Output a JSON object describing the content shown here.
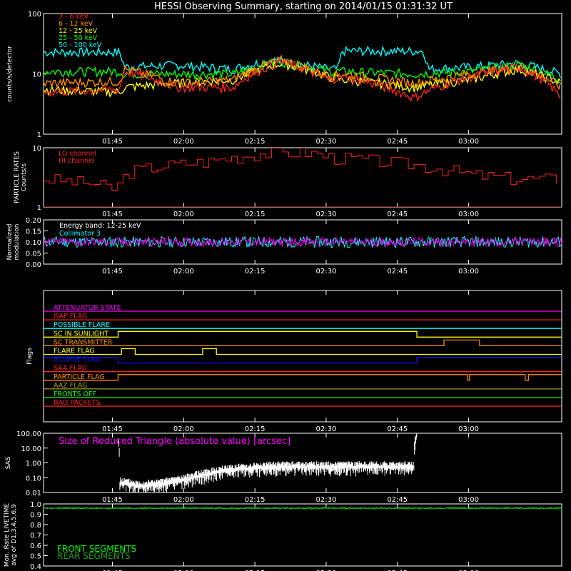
{
  "title": "HESSI Observing Summary, starting on 2014/01/15 01:31:32 UT",
  "time_ticks": [
    "01:45",
    "02:00",
    "02:15",
    "02:30",
    "02:45",
    "03:00"
  ],
  "colors": {
    "red": "#ff2020",
    "orange": "#ff8c00",
    "yellow": "#ffff00",
    "green": "#00ff00",
    "cyan": "#00ffff",
    "magenta": "#ff00ff",
    "blue": "#1010ff",
    "olive": "#a0a020",
    "dkgreen": "#20a020"
  },
  "chart_data": [
    {
      "id": "count-rates",
      "type": "line",
      "ylabel": "counts/s/detector",
      "y_log": true,
      "ylim": [
        1,
        100
      ],
      "yticks": [
        "1",
        "10",
        "100"
      ],
      "legend_position": "top-left",
      "series": [
        {
          "name": "3 - 6 keV",
          "color": "#ff2020",
          "t": [
            0,
            16,
            17,
            28,
            40,
            50,
            60,
            63,
            78,
            90,
            100,
            109
          ],
          "values": [
            5,
            5.5,
            11,
            6,
            6,
            16,
            8,
            9,
            4,
            9,
            13,
            4
          ]
        },
        {
          "name": "6 - 12 keV",
          "color": "#ff8c00",
          "t": [
            0,
            16,
            17,
            28,
            40,
            50,
            60,
            63,
            78,
            90,
            100,
            109
          ],
          "values": [
            7,
            7.5,
            12,
            7,
            8,
            17,
            9,
            10,
            7,
            10,
            13,
            6
          ]
        },
        {
          "name": "12 - 25 keV",
          "color": "#ffff00",
          "t": [
            0,
            16,
            17,
            28,
            40,
            50,
            60,
            63,
            78,
            90,
            100,
            109
          ],
          "values": [
            5.5,
            5,
            6,
            7,
            8,
            15,
            9,
            8,
            6,
            8,
            12,
            7
          ]
        },
        {
          "name": "25 - 50 keV",
          "color": "#00ff00",
          "t": [
            0,
            16,
            17,
            28,
            40,
            50,
            60,
            63,
            78,
            90,
            100,
            109
          ],
          "values": [
            11,
            11,
            10,
            10,
            10,
            16,
            11,
            11,
            10,
            11,
            14,
            8
          ]
        },
        {
          "name": "50 - 100 keV",
          "color": "#00ffff",
          "t": [
            0,
            16,
            17,
            28,
            40,
            48,
            60,
            62,
            63,
            80,
            81,
            90,
            100,
            109
          ],
          "values": [
            23,
            23,
            13,
            14,
            12,
            17,
            12,
            12,
            24,
            24,
            12,
            13,
            15,
            10
          ]
        }
      ]
    },
    {
      "id": "particle-rates",
      "type": "line",
      "ylabel": "PARTICLE RATES Counts/s",
      "y_log": true,
      "ylim": [
        1,
        10
      ],
      "yticks": [
        "1",
        "10"
      ],
      "legend_position": "top-left",
      "series": [
        {
          "name": "LO channel",
          "color": "#ff2020",
          "t": [
            0,
            109
          ],
          "values": [
            1,
            1
          ]
        },
        {
          "name": "HI channel",
          "color": "#ff2020",
          "t": [
            0,
            10,
            15,
            18,
            25,
            35,
            45,
            55,
            60,
            70,
            80,
            90,
            100,
            109
          ],
          "values": [
            3,
            2.5,
            2,
            4,
            5,
            6,
            8,
            8.5,
            7,
            6,
            5,
            3.5,
            3,
            3
          ]
        }
      ]
    },
    {
      "id": "modulation",
      "type": "line",
      "ylabel": "Normalized modulation",
      "ylim": [
        0,
        0.2
      ],
      "yticks": [
        "0.00",
        "0.05",
        "0.10",
        "0.15",
        "0.20"
      ],
      "annotations": [
        "Energy band: 12-25 keV",
        "Collimator 3"
      ],
      "series": [
        {
          "name": "cyan",
          "color": "#00ffff",
          "mean": 0.1,
          "spread": 0.025
        },
        {
          "name": "magenta",
          "color": "#ff00ff",
          "mean": 0.1,
          "spread": 0.02
        }
      ]
    },
    {
      "id": "flags",
      "type": "line",
      "ylabel": "Flags",
      "series": [
        {
          "name": "ATTENUATOR STATE",
          "color": "#ff00ff",
          "levels": [
            [
              0,
              109,
              0
            ]
          ]
        },
        {
          "name": "GAP FLAG",
          "color": "#ff2020",
          "levels": [
            [
              0,
              109,
              0
            ]
          ]
        },
        {
          "name": "POSSIBLE FLARE",
          "color": "#00ffff",
          "levels": [
            [
              0,
              109,
              0
            ]
          ]
        },
        {
          "name": "SC IN SUNLIGHT",
          "color": "#ffff00",
          "levels": [
            [
              0,
              15.7,
              0
            ],
            [
              15.7,
              78.6,
              1
            ],
            [
              78.6,
              109,
              0
            ]
          ]
        },
        {
          "name": "SC TRANSMITTER",
          "color": "#ff8c00",
          "levels": [
            [
              0,
              84.3,
              0
            ],
            [
              84.3,
              91.8,
              1
            ],
            [
              91.8,
              109,
              0
            ]
          ]
        },
        {
          "name": "FLARE FLAG",
          "color": "#ffff00",
          "levels": [
            [
              0,
              16.4,
              0
            ],
            [
              16.4,
              19.3,
              1
            ],
            [
              19.3,
              33.5,
              0
            ],
            [
              33.5,
              36.4,
              1
            ],
            [
              36.4,
              109,
              0
            ]
          ]
        },
        {
          "name": "ECLIPSE FLAG",
          "color": "#1010ff",
          "levels": [
            [
              0,
              15.7,
              1
            ],
            [
              15.7,
              78.6,
              0
            ],
            [
              78.6,
              109,
              1
            ]
          ]
        },
        {
          "name": "SAA FLAG",
          "color": "#ff2020",
          "levels": [
            [
              0,
              109,
              0
            ]
          ]
        },
        {
          "name": "PARTICLE FLAG",
          "color": "#ff8c00",
          "levels": [
            [
              0,
              15.7,
              0
            ],
            [
              15.7,
              89.3,
              1
            ],
            [
              89.3,
              89.7,
              0
            ],
            [
              89.7,
              101.4,
              1
            ],
            [
              101.4,
              102.1,
              0
            ],
            [
              102.1,
              109,
              1
            ]
          ]
        },
        {
          "name": "AAZ FLAG",
          "color": "#a0a020",
          "levels": [
            [
              0,
              109,
              0
            ]
          ]
        },
        {
          "name": "FRONTS OFF",
          "color": "#00ff00",
          "levels": [
            [
              0,
              109,
              0
            ]
          ]
        },
        {
          "name": "BAD PACKETS",
          "color": "#ff2020",
          "levels": [
            [
              0,
              109,
              0
            ]
          ]
        }
      ]
    },
    {
      "id": "sas",
      "type": "line",
      "ylabel": "SAS",
      "y_log": true,
      "ylim": [
        0.01,
        100
      ],
      "yticks": [
        "0.01",
        "0.10",
        "1.00",
        "10.00",
        "100.00"
      ],
      "annotations": [
        "Size of Reduced Triangle (absolute value) [arcsec]"
      ],
      "series": [
        {
          "name": "SAS",
          "color": "#ffffff",
          "t": [
            15.7,
            16,
            20,
            25,
            30,
            35,
            40,
            50,
            60,
            70,
            78,
            78.6
          ],
          "values": [
            30,
            0.05,
            0.03,
            0.04,
            0.08,
            0.2,
            0.4,
            0.6,
            0.6,
            0.6,
            0.6,
            80
          ]
        }
      ]
    },
    {
      "id": "livetime",
      "type": "line",
      "ylabel": "Mon. Rate LIVETIME avg of D1,3,4,5,6,9",
      "ylim": [
        0.4,
        1.0
      ],
      "yticks": [
        "0.4",
        "0.5",
        "0.6",
        "0.7",
        "0.8",
        "0.9",
        "1.0"
      ],
      "series": [
        {
          "name": "FRONT SEGMENTS",
          "color": "#00ff00",
          "t": [
            0,
            109
          ],
          "values": [
            0.96,
            0.96
          ]
        },
        {
          "name": "REAR SEGMENTS",
          "color": "#20a020",
          "t": [
            0,
            109
          ],
          "values": [
            0.955,
            0.955
          ]
        }
      ]
    }
  ]
}
